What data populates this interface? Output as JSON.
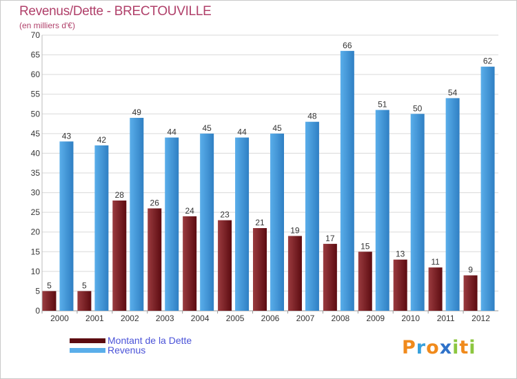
{
  "header": {
    "title": "Revenus/Dette - BRECTOUVILLE",
    "subtitle": "(en milliers d'€)"
  },
  "legend": {
    "debt_label": "Montant de la Dette",
    "revenue_label": "Revenus"
  },
  "logo": {
    "letters": [
      "P",
      "r",
      "o",
      "x",
      "i",
      "t",
      "i"
    ],
    "colors": [
      "#f08a1c",
      "#37a0dc",
      "#f08a1c",
      "#2f72c9",
      "#8cc63f",
      "#f08a1c",
      "#8cc63f"
    ]
  },
  "colors": {
    "debt_top": "#9a3b3f",
    "debt_bottom": "#5c0b10",
    "revenue_top": "#5aaeea",
    "revenue_bottom": "#2f7fc3",
    "grid": "#d9d9d9",
    "axis_text": "#333333"
  },
  "chart_data": {
    "type": "bar",
    "title": "Revenus/Dette - BRECTOUVILLE",
    "subtitle": "(en milliers d'€)",
    "xlabel": "",
    "ylabel": "",
    "ylim": [
      0,
      70
    ],
    "yticks": [
      0,
      5,
      10,
      15,
      20,
      25,
      30,
      35,
      40,
      45,
      50,
      55,
      60,
      65,
      70
    ],
    "grid": true,
    "legend_position": "bottom-left",
    "categories": [
      "2000",
      "2001",
      "2002",
      "2003",
      "2004",
      "2005",
      "2006",
      "2007",
      "2008",
      "2009",
      "2010",
      "2011",
      "2012"
    ],
    "series": [
      {
        "name": "Montant de la Dette",
        "values": [
          5,
          5,
          28,
          26,
          24,
          23,
          21,
          19,
          17,
          15,
          13,
          11,
          9
        ]
      },
      {
        "name": "Revenus",
        "values": [
          43,
          42,
          49,
          44,
          45,
          44,
          45,
          48,
          66,
          51,
          50,
          54,
          62
        ]
      }
    ]
  }
}
